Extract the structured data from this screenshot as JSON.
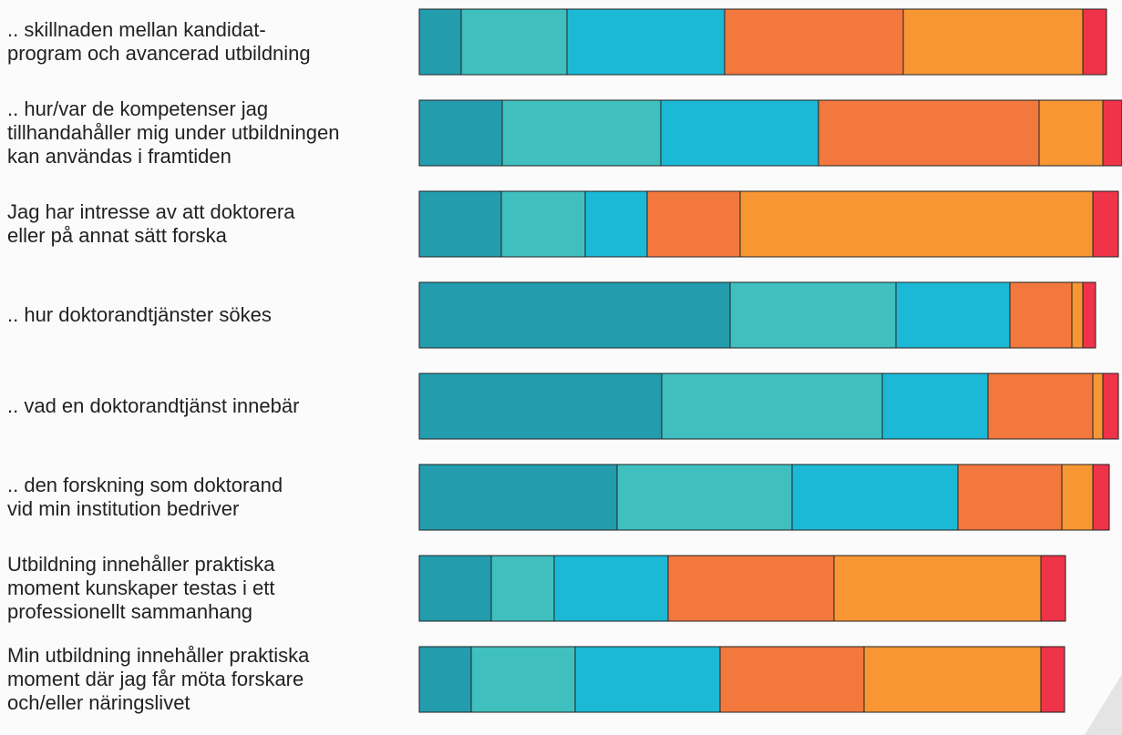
{
  "chart_data": {
    "type": "stacked-bar",
    "categories": [
      ".. skillnaden mellan kandidat-\nprogram och avancerad utbildning",
      ".. hur/var de kompetenser jag\ntillhandahåller mig under utbildningen\nkan användas i framtiden",
      "Jag har intresse av att doktorera\neller på annat sätt forska",
      ".. hur doktorandtjänster sökes",
      ".. vad en doktorandtjänst innebär",
      ".. den forskning som doktorand\nvid min institution bedriver",
      "Utbildning innehåller praktiska\nmoment kunskaper testas i ett\nprofessionellt sammanhang",
      "Min utbildning innehåller praktiska\nmoment där jag får möta forskare\noch/eller näringslivet"
    ],
    "series": [
      {
        "color": "#239dae",
        "values": [
          46,
          91,
          90,
          341,
          266,
          217,
          79,
          57
        ]
      },
      {
        "color": "#40bfbf",
        "values": [
          116,
          174,
          92,
          182,
          242,
          192,
          69,
          114
        ]
      },
      {
        "color": "#1bb9d6",
        "values": [
          173,
          173,
          68,
          125,
          116,
          182,
          125,
          159
        ]
      },
      {
        "color": "#f2783d",
        "values": [
          196,
          242,
          102,
          68,
          115,
          114,
          182,
          158
        ]
      },
      {
        "color": "#f79633",
        "values": [
          197,
          70,
          387,
          12,
          11,
          34,
          227,
          194
        ]
      },
      {
        "color": "#ef3349",
        "values": [
          26,
          21,
          28,
          14,
          17,
          18,
          27,
          26
        ]
      }
    ],
    "xlim": [
      0,
      771
    ]
  }
}
